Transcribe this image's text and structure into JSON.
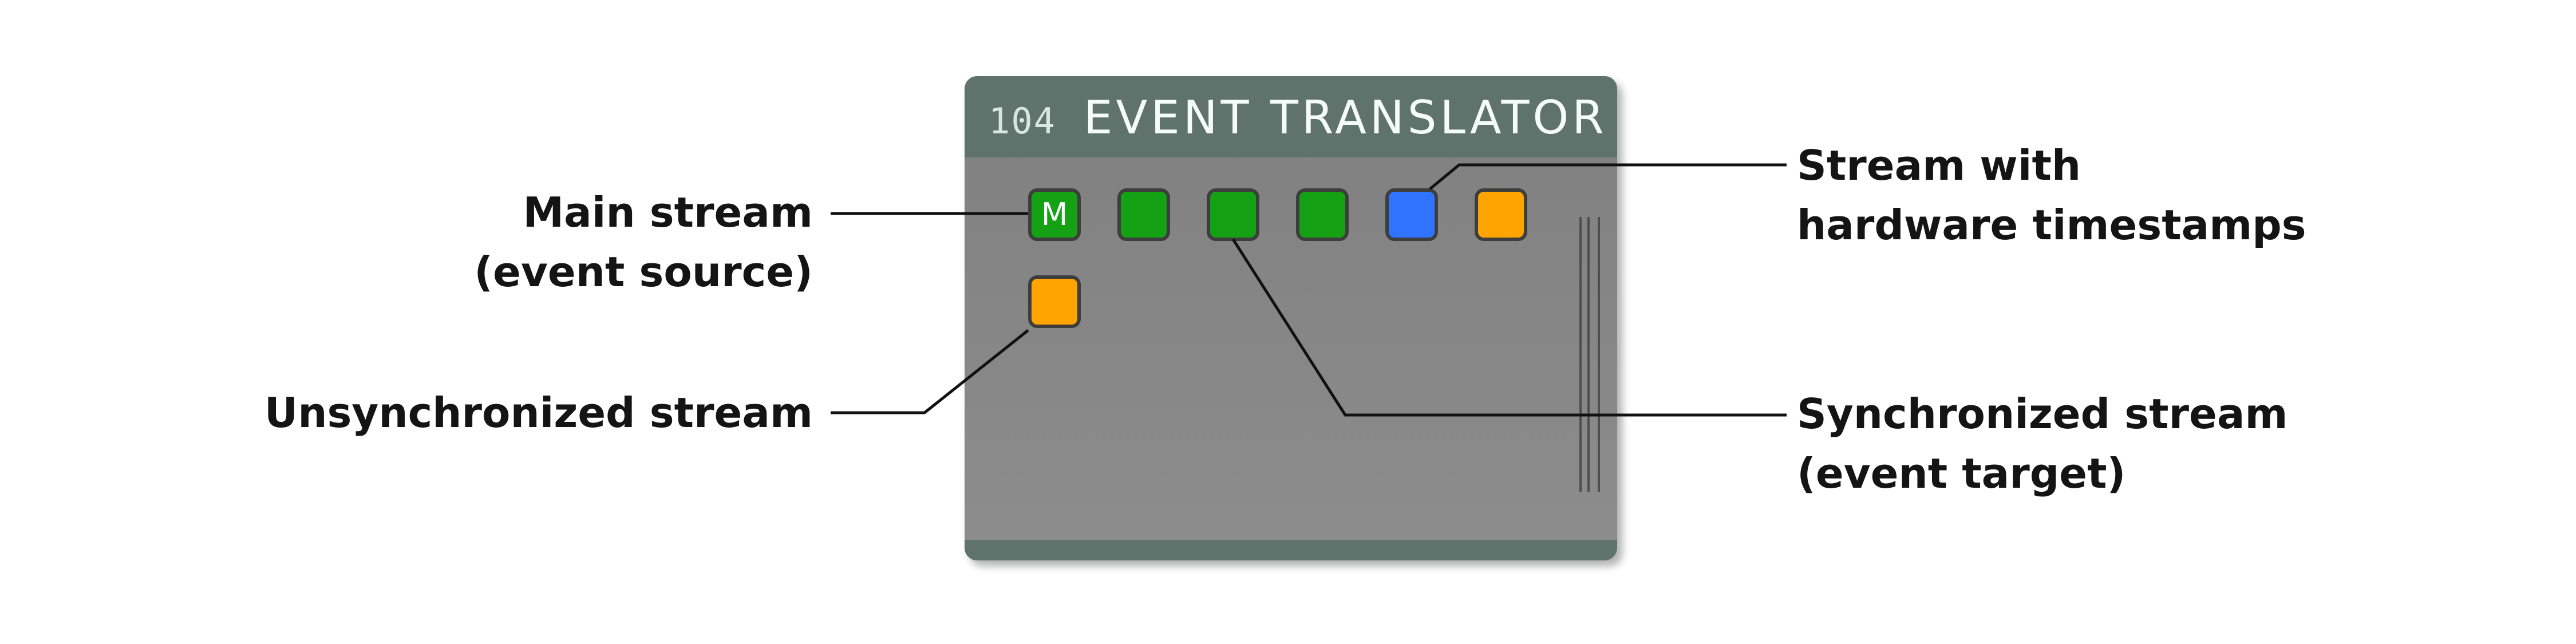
{
  "node": {
    "id": "104",
    "title": "EVENT TRANSLATOR"
  },
  "ports": [
    {
      "label": "M",
      "color": "#14a214",
      "kind": "main-stream"
    },
    {
      "label": "",
      "color": "#14a214",
      "kind": "synchronized-stream"
    },
    {
      "label": "",
      "color": "#14a214",
      "kind": "synchronized-stream"
    },
    {
      "label": "",
      "color": "#14a214",
      "kind": "synchronized-stream"
    },
    {
      "label": "",
      "color": "#2f73ff",
      "kind": "hardware-timestamp-stream"
    },
    {
      "label": "",
      "color": "#ffa400",
      "kind": "unsynchronized-stream"
    },
    {
      "label": "",
      "color": "#ffa400",
      "kind": "unsynchronized-stream"
    }
  ],
  "callouts": {
    "main_stream": {
      "line1": "Main stream",
      "line2": "(event source)"
    },
    "unsynchronized_stream": {
      "line1": "Unsynchronized stream"
    },
    "hardware_timestamps": {
      "line1": "Stream with",
      "line2": "hardware timestamps"
    },
    "synchronized_stream": {
      "line1": "Synchronized stream",
      "line2": "(event target)"
    }
  },
  "colors": {
    "header": "#5f726c",
    "panel": "#888888",
    "port_border": "#3d3d3d",
    "leader_line": "#111111"
  }
}
